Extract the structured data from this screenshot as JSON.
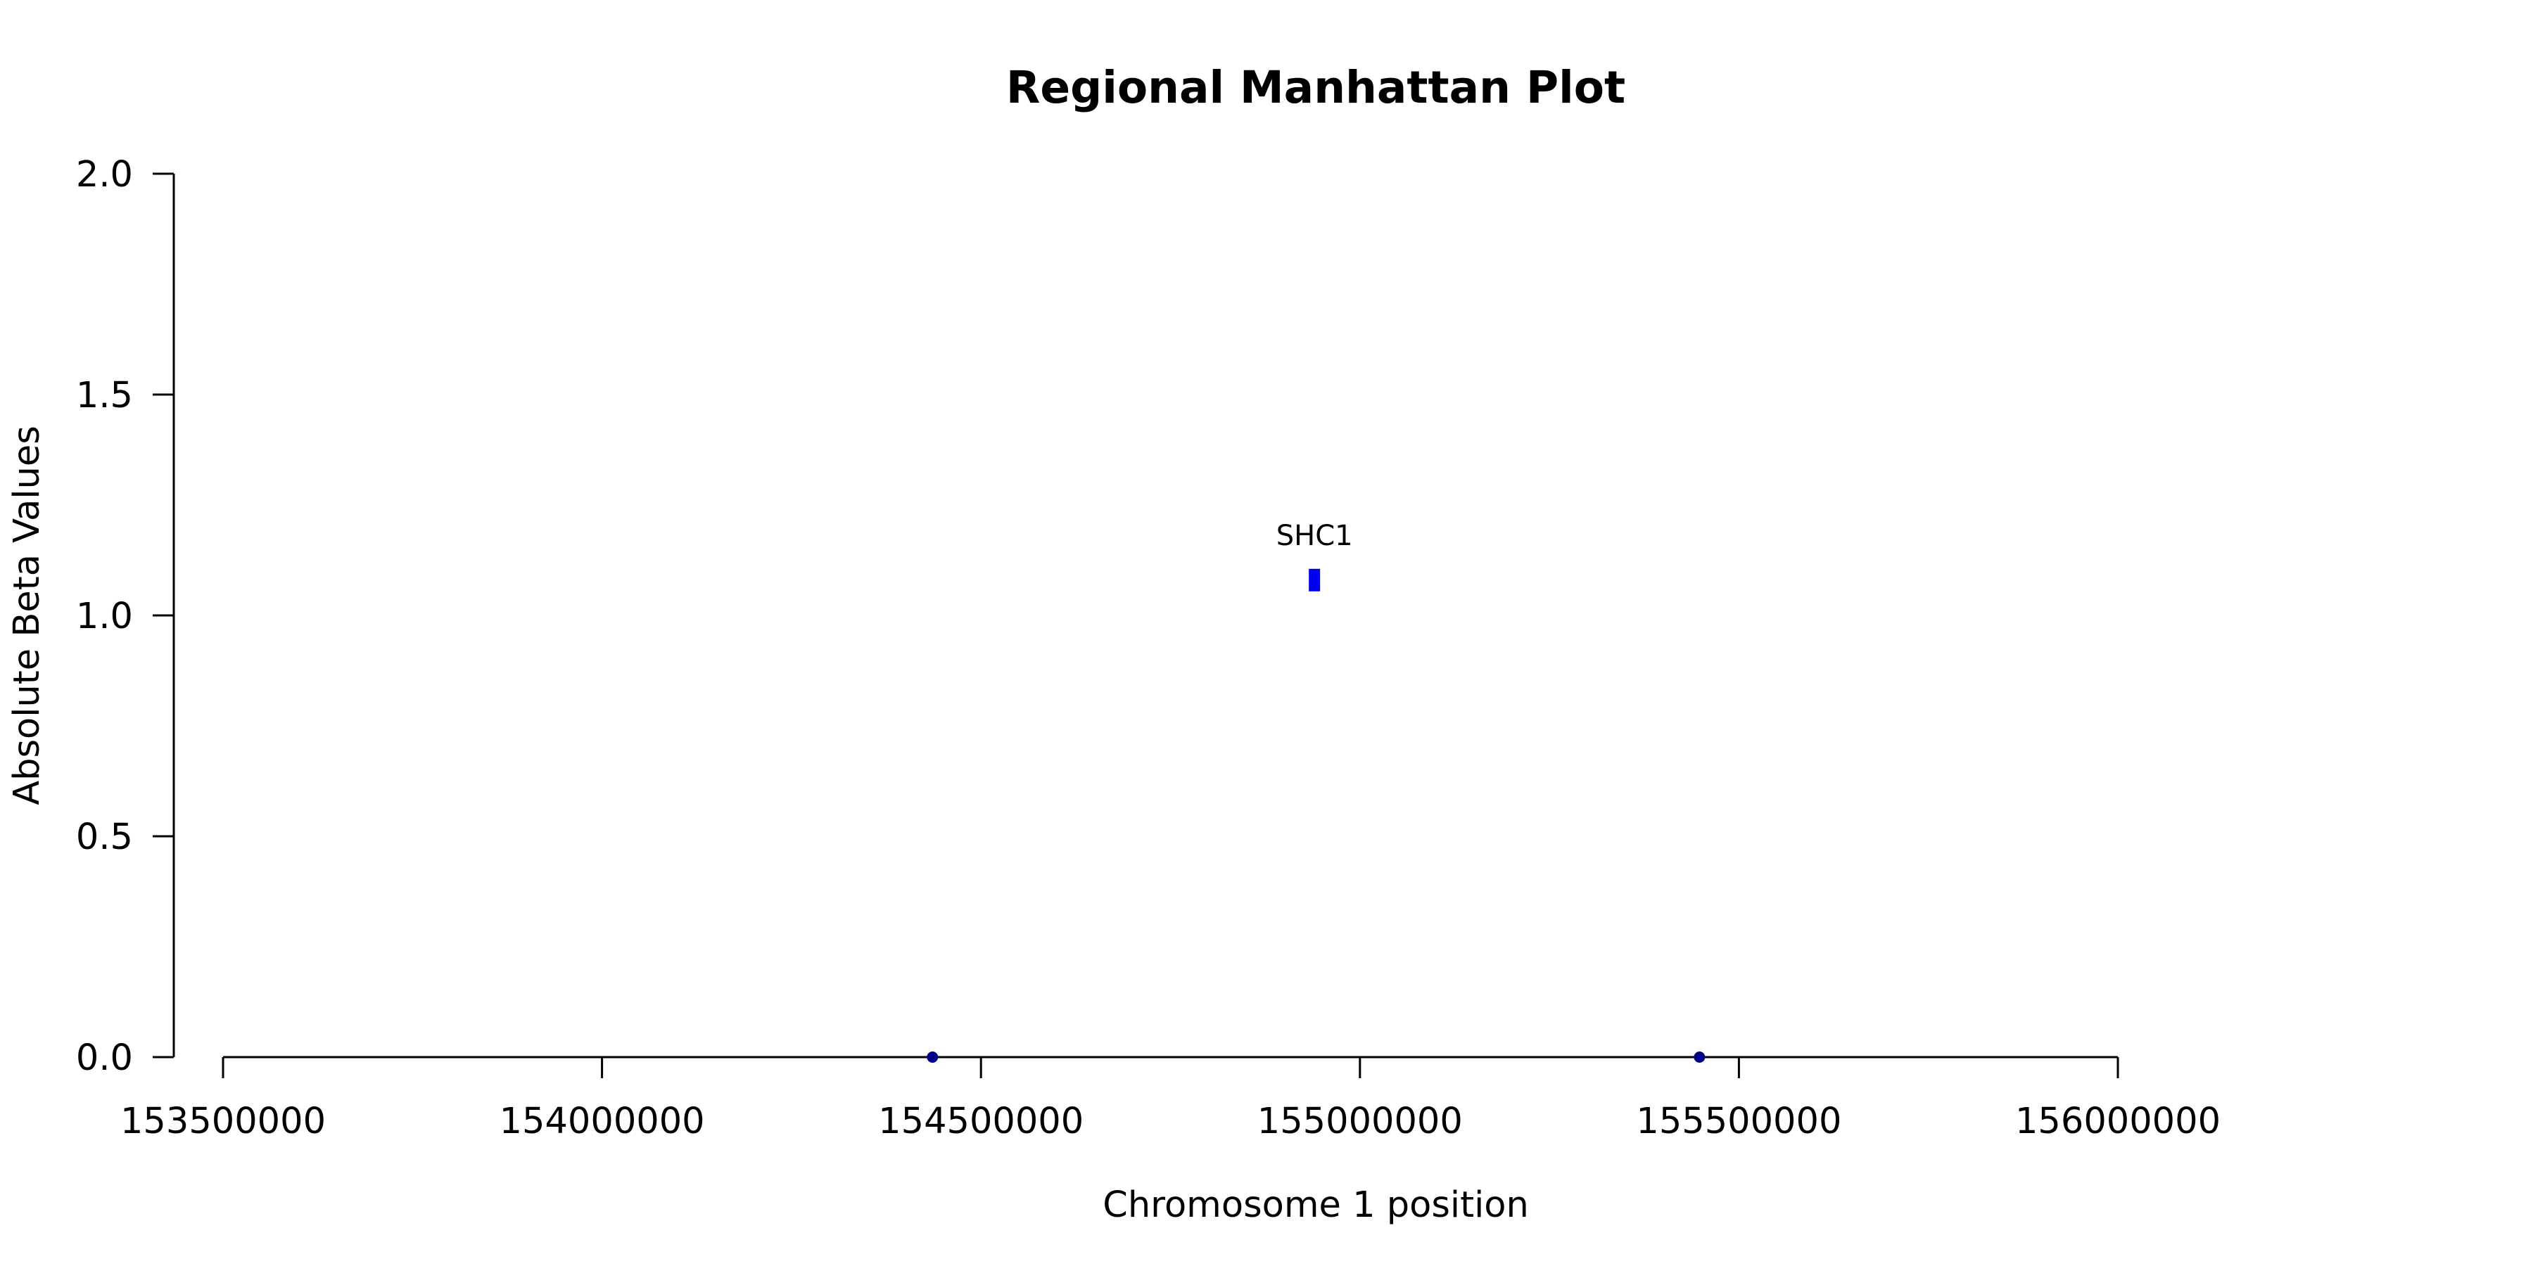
{
  "chart_data": {
    "type": "scatter",
    "title": "Regional Manhattan Plot",
    "xlabel": "Chromosome 1 position",
    "ylabel": "Absolute Beta Values",
    "xlim": [
      153500000,
      156000000
    ],
    "ylim": [
      0,
      2
    ],
    "x_ticks": [
      "153500000",
      "154000000",
      "154500000",
      "155000000",
      "155500000",
      "156000000"
    ],
    "x_tick_values": [
      153500000,
      154000000,
      154500000,
      155000000,
      155500000,
      156000000
    ],
    "y_ticks": [
      "0.0",
      "0.5",
      "1.0",
      "1.5",
      "2.0"
    ],
    "y_tick_values": [
      0,
      0.5,
      1.0,
      1.5,
      2.0
    ],
    "grid": false,
    "points": [
      {
        "x": 154436000,
        "y": 0.0,
        "color": "#00008b",
        "shape": "circle"
      },
      {
        "x": 154940000,
        "y": 1.08,
        "color": "#0000ee",
        "shape": "rect",
        "label": "SHC1"
      },
      {
        "x": 155448000,
        "y": 0.0,
        "color": "#00008b",
        "shape": "circle"
      }
    ]
  }
}
